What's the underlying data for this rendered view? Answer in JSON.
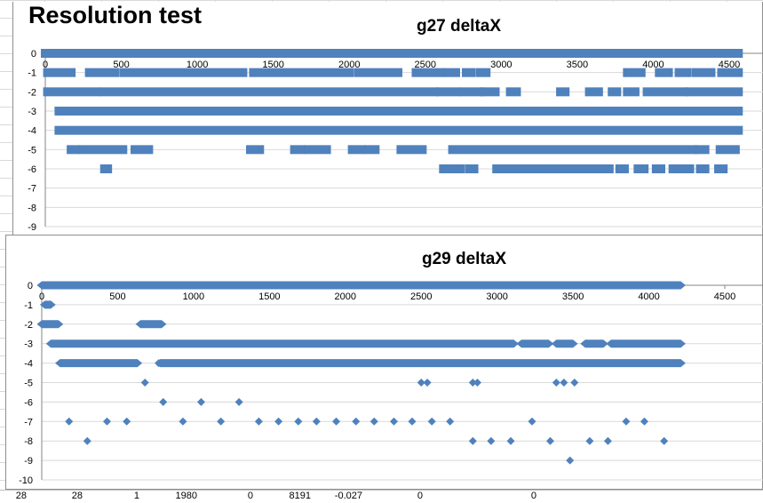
{
  "sheet": {
    "title": "Resolution test",
    "bottom_row_cells": [
      "28",
      "28",
      "1",
      "1980",
      "0",
      "8191",
      "-0.027",
      "0",
      "0"
    ]
  },
  "colors": {
    "marker": "#4f81bd",
    "grid": "#d9d9d9",
    "axis": "#868686"
  },
  "chart_data": [
    {
      "type": "scatter",
      "title": "g27 deltaX",
      "marker": "square",
      "xlim": [
        0,
        4500
      ],
      "xticks": [
        0,
        500,
        1000,
        1500,
        2000,
        2500,
        3000,
        3500,
        4000,
        4500
      ],
      "ylim": [
        -9,
        0
      ],
      "yticks": [
        0,
        -1,
        -2,
        -3,
        -4,
        -5,
        -6,
        -7,
        -8,
        -9
      ],
      "grid": true,
      "runs": [
        {
          "y": 0,
          "x": [
            [
              0,
              4560
            ]
          ]
        },
        {
          "y": -1,
          "x": [
            [
              15,
              170
            ],
            [
              290,
              460
            ],
            [
              520,
              1300
            ],
            [
              1370,
              2000
            ],
            [
              2060,
              2320
            ],
            [
              2440,
              2600
            ],
            [
              2650,
              2700
            ],
            [
              2770,
              2800
            ],
            [
              2860,
              2900
            ],
            [
              3830,
              3920
            ],
            [
              4040,
              4100
            ],
            [
              4170,
              4220
            ],
            [
              4280,
              4380
            ],
            [
              4450,
              4560
            ]
          ]
        },
        {
          "y": -2,
          "x": [
            [
              15,
              340
            ],
            [
              390,
              2560
            ],
            [
              2600,
              2700
            ],
            [
              2750,
              2860
            ],
            [
              2890,
              2960
            ],
            [
              3060,
              3100
            ],
            [
              3390,
              3420
            ],
            [
              3580,
              3640
            ],
            [
              3730,
              3760
            ],
            [
              3830,
              3880
            ],
            [
              3960,
              4200
            ],
            [
              4240,
              4560
            ]
          ]
        },
        {
          "y": -3,
          "x": [
            [
              90,
              4560
            ]
          ]
        },
        {
          "y": -4,
          "x": [
            [
              90,
              4560
            ]
          ]
        },
        {
          "y": -5,
          "x": [
            [
              170,
              200
            ],
            [
              250,
              510
            ],
            [
              590,
              680
            ],
            [
              1350,
              1410
            ],
            [
              1640,
              1680
            ],
            [
              1730,
              1850
            ],
            [
              2020,
              2080
            ],
            [
              2130,
              2170
            ],
            [
              2340,
              2480
            ],
            [
              2680,
              4260
            ],
            [
              4300,
              4340
            ],
            [
              4440,
              4540
            ]
          ]
        },
        {
          "y": -6,
          "x": [
            [
              390,
              410
            ],
            [
              2620,
              2650
            ],
            [
              2700,
              2730
            ],
            [
              2790,
              2820
            ],
            [
              2970,
              3320
            ],
            [
              3370,
              3710
            ],
            [
              3780,
              3810
            ],
            [
              3900,
              3940
            ],
            [
              4020,
              4050
            ],
            [
              4130,
              4160
            ],
            [
              4200,
              4240
            ],
            [
              4310,
              4340
            ],
            [
              4430,
              4460
            ]
          ]
        }
      ]
    },
    {
      "type": "scatter",
      "title": "g29 deltaX",
      "marker": "diamond",
      "xlim": [
        0,
        4500
      ],
      "xticks": [
        0,
        500,
        1000,
        1500,
        2000,
        2500,
        3000,
        3500,
        4000,
        4500
      ],
      "ylim": [
        -10,
        0
      ],
      "yticks": [
        0,
        -1,
        -2,
        -3,
        -4,
        -5,
        -6,
        -7,
        -8,
        -9,
        -10
      ],
      "grid": true,
      "runs": [
        {
          "y": 0,
          "x": [
            [
              0,
              4210
            ]
          ]
        },
        {
          "y": -1,
          "x": [
            [
              20,
              60
            ]
          ]
        },
        {
          "y": -2,
          "x": [
            [
              0,
              110
            ],
            [
              650,
              790
            ]
          ]
        },
        {
          "y": -3,
          "x": [
            [
              60,
              3110
            ],
            [
              3160,
              3340
            ],
            [
              3390,
              3500
            ],
            [
              3580,
              3700
            ],
            [
              3750,
              4210
            ]
          ]
        },
        {
          "y": -4,
          "x": [
            [
              120,
              630
            ],
            [
              780,
              4210
            ]
          ]
        }
      ],
      "points": [
        {
          "y": -4,
          "x": [
            770
          ]
        },
        {
          "y": -5,
          "x": [
            680,
            2500,
            2540,
            2840,
            2870,
            3390,
            3440,
            3510
          ]
        },
        {
          "y": -6,
          "x": [
            800,
            1050,
            1300
          ]
        },
        {
          "y": -7,
          "x": [
            180,
            430,
            560,
            930,
            1180,
            1430,
            1560,
            1690,
            1810,
            1940,
            2070,
            2190,
            2320,
            2440,
            2570,
            2690,
            3230,
            3850,
            3970
          ]
        },
        {
          "y": -8,
          "x": [
            300,
            2840,
            2960,
            3090,
            3350,
            3610,
            3730,
            4100
          ]
        },
        {
          "y": -9,
          "x": [
            3480
          ]
        }
      ]
    }
  ]
}
